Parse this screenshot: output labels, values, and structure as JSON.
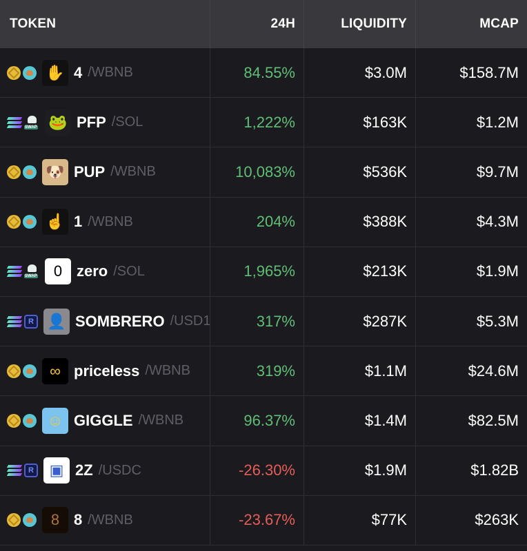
{
  "header": {
    "token": "TOKEN",
    "change_24h": "24H",
    "liquidity": "LIQUIDITY",
    "mcap": "MCAP"
  },
  "colors": {
    "positive": "#5fbf76",
    "negative": "#e65d58",
    "header_bg": "#38383d",
    "row_bg": "#1b1b1f"
  },
  "rows": [
    {
      "chain_icon": "bnb-icon",
      "dex_icon": "pancakeswap-icon",
      "logo": "hand-icon",
      "symbol": "4",
      "quote": "/WBNB",
      "change": "84.55%",
      "liquidity": "$3.0M",
      "mcap": "$158.7M",
      "positive": true
    },
    {
      "chain_icon": "solana-icon",
      "dex_icon": "swap-icon",
      "logo": "pepe-icon",
      "symbol": "PFP",
      "quote": "/SOL",
      "change": "1,222%",
      "liquidity": "$163K",
      "mcap": "$1.2M",
      "positive": true
    },
    {
      "chain_icon": "bnb-icon",
      "dex_icon": "pancakeswap-icon",
      "logo": "dog-icon",
      "symbol": "PUP",
      "quote": "/WBNB",
      "change": "10,083%",
      "liquidity": "$536K",
      "mcap": "$9.7M",
      "positive": true
    },
    {
      "chain_icon": "bnb-icon",
      "dex_icon": "pancakeswap-icon",
      "logo": "finger-icon",
      "symbol": "1",
      "quote": "/WBNB",
      "change": "204%",
      "liquidity": "$388K",
      "mcap": "$4.3M",
      "positive": true
    },
    {
      "chain_icon": "solana-icon",
      "dex_icon": "swap-icon",
      "logo": "zero-icon",
      "symbol": "zero",
      "quote": "/SOL",
      "change": "1,965%",
      "liquidity": "$213K",
      "mcap": "$1.9M",
      "positive": true
    },
    {
      "chain_icon": "solana-icon",
      "dex_icon": "raydium-icon",
      "logo": "man-photo-icon",
      "symbol": "SOMBRERO",
      "quote": "/USD1",
      "change": "317%",
      "liquidity": "$287K",
      "mcap": "$5.3M",
      "positive": true
    },
    {
      "chain_icon": "bnb-icon",
      "dex_icon": "pancakeswap-icon",
      "logo": "infinity-icon",
      "symbol": "priceless",
      "quote": "/WBNB",
      "change": "319%",
      "liquidity": "$1.1M",
      "mcap": "$24.6M",
      "positive": true
    },
    {
      "chain_icon": "bnb-icon",
      "dex_icon": "pancakeswap-icon",
      "logo": "smiley-icon",
      "symbol": "GIGGLE",
      "quote": "/WBNB",
      "change": "96.37%",
      "liquidity": "$1.4M",
      "mcap": "$82.5M",
      "positive": true
    },
    {
      "chain_icon": "solana-icon",
      "dex_icon": "raydium-icon",
      "logo": "broken-image-icon",
      "symbol": "2Z",
      "quote": "/USDC",
      "change": "-26.30%",
      "liquidity": "$1.9M",
      "mcap": "$1.82B",
      "positive": false
    },
    {
      "chain_icon": "bnb-icon",
      "dex_icon": "pancakeswap-icon",
      "logo": "eight-icon",
      "symbol": "8",
      "quote": "/WBNB",
      "change": "-23.67%",
      "liquidity": "$77K",
      "mcap": "$263K",
      "positive": false
    }
  ]
}
